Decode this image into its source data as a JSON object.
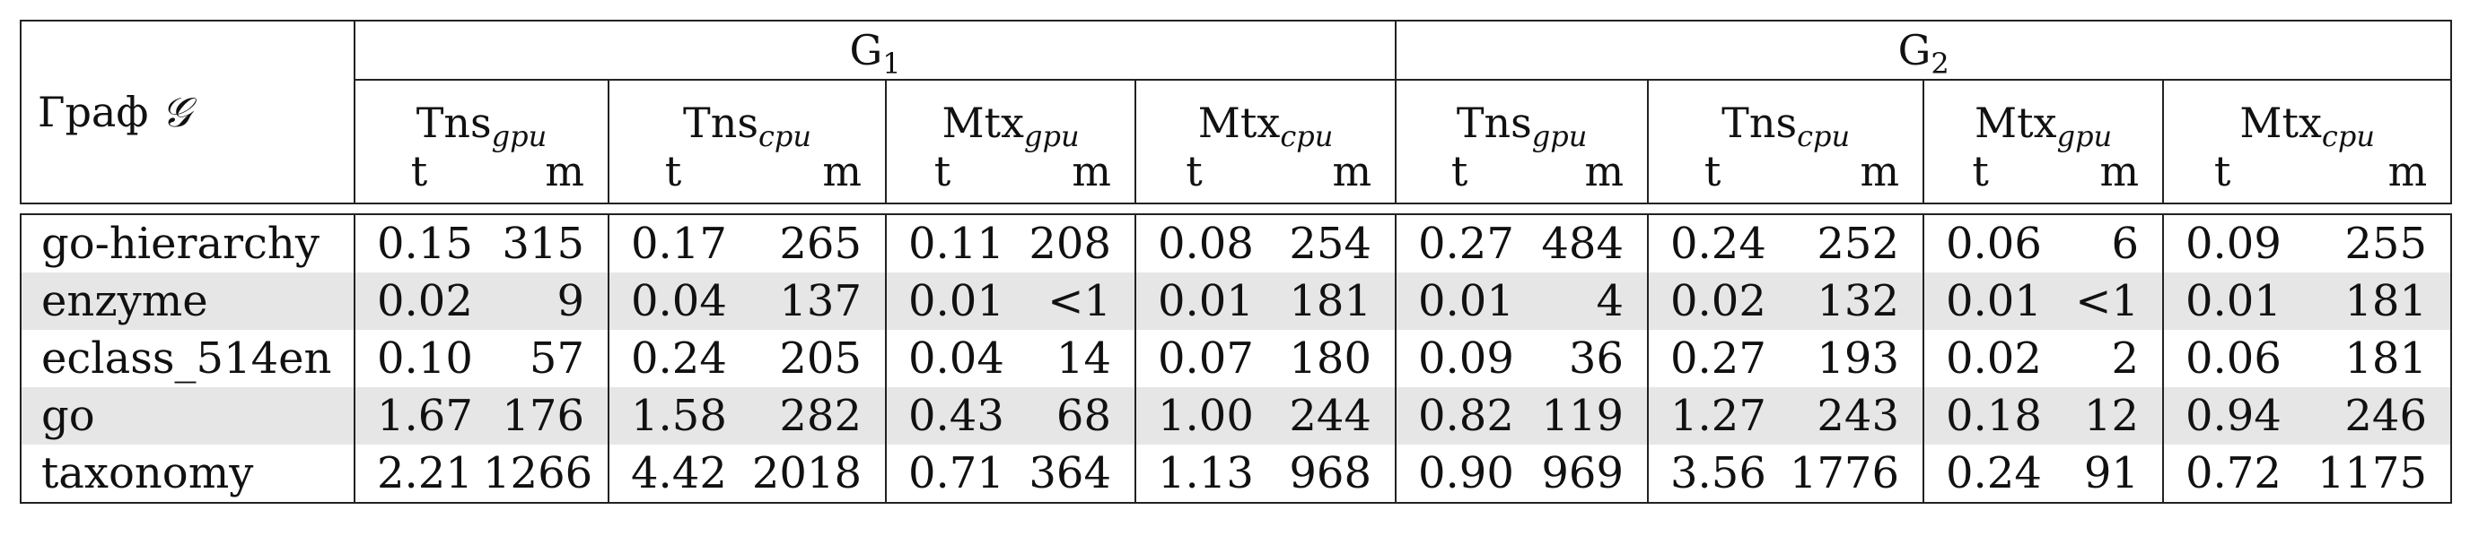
{
  "header": {
    "graph_label": "Граф",
    "graph_symbol": "𝒢",
    "groups": [
      "G",
      "G"
    ],
    "group_subs": [
      "1",
      "2"
    ],
    "algos": [
      {
        "base": "Tns",
        "sub": "gpu"
      },
      {
        "base": "Tns",
        "sub": "cpu"
      },
      {
        "base": "Mtx",
        "sub": "gpu"
      },
      {
        "base": "Mtx",
        "sub": "cpu"
      },
      {
        "base": "Tns",
        "sub": "gpu"
      },
      {
        "base": "Tns",
        "sub": "cpu"
      },
      {
        "base": "Mtx",
        "sub": "gpu"
      },
      {
        "base": "Mtx",
        "sub": "cpu"
      }
    ],
    "col_t": "t",
    "col_m": "m"
  },
  "rows": [
    {
      "name": "go-hierarchy",
      "values": [
        "0.15",
        "315",
        "0.17",
        "265",
        "0.11",
        "208",
        "0.08",
        "254",
        "0.27",
        "484",
        "0.24",
        "252",
        "0.06",
        "6",
        "0.09",
        "255"
      ]
    },
    {
      "name": "enzyme",
      "values": [
        "0.02",
        "9",
        "0.04",
        "137",
        "0.01",
        "<1",
        "0.01",
        "181",
        "0.01",
        "4",
        "0.02",
        "132",
        "0.01",
        "<1",
        "0.01",
        "181"
      ]
    },
    {
      "name": "eclass_514en",
      "values": [
        "0.10",
        "57",
        "0.24",
        "205",
        "0.04",
        "14",
        "0.07",
        "180",
        "0.09",
        "36",
        "0.27",
        "193",
        "0.02",
        "2",
        "0.06",
        "181"
      ]
    },
    {
      "name": "go",
      "values": [
        "1.67",
        "176",
        "1.58",
        "282",
        "0.43",
        "68",
        "1.00",
        "244",
        "0.82",
        "119",
        "1.27",
        "243",
        "0.18",
        "12",
        "0.94",
        "246"
      ]
    },
    {
      "name": "taxonomy",
      "values": [
        "2.21",
        "1266",
        "4.42",
        "2018",
        "0.71",
        "364",
        "1.13",
        "968",
        "0.90",
        "969",
        "3.56",
        "1776",
        "0.24",
        "91",
        "0.72",
        "1175"
      ]
    }
  ]
}
